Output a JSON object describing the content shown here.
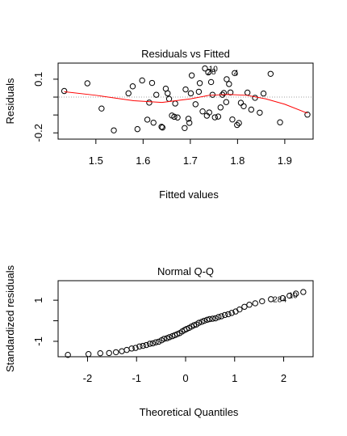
{
  "chart_data": [
    {
      "type": "scatter",
      "title": "Residuals vs Fitted",
      "xlabel": "Fitted values",
      "ylabel": "Residuals",
      "xlim": [
        1.42,
        1.96
      ],
      "ylim": [
        -0.235,
        0.19
      ],
      "xticks": [
        1.5,
        1.6,
        1.7,
        1.8,
        1.9
      ],
      "yticks": [
        -0.2,
        0.1
      ],
      "ytick_labels": [
        "-0.2",
        "0.1"
      ],
      "reference_line_y": 0,
      "smoother_color": "#ff0000",
      "reference_color": "#a0a0a0",
      "points": [
        [
          1.433,
          0.034
        ],
        [
          1.482,
          0.077
        ],
        [
          1.512,
          -0.064
        ],
        [
          1.538,
          -0.186
        ],
        [
          1.569,
          0.021
        ],
        [
          1.578,
          0.06
        ],
        [
          1.588,
          -0.179
        ],
        [
          1.598,
          0.093
        ],
        [
          1.609,
          -0.126
        ],
        [
          1.613,
          -0.031
        ],
        [
          1.619,
          0.079
        ],
        [
          1.622,
          -0.143
        ],
        [
          1.628,
          0.013
        ],
        [
          1.639,
          -0.166
        ],
        [
          1.641,
          -0.17
        ],
        [
          1.648,
          0.047
        ],
        [
          1.652,
          0.021
        ],
        [
          1.655,
          -0.01
        ],
        [
          1.661,
          -0.103
        ],
        [
          1.666,
          -0.11
        ],
        [
          1.668,
          -0.036
        ],
        [
          1.673,
          -0.114
        ],
        [
          1.688,
          -0.173
        ],
        [
          1.69,
          0.043
        ],
        [
          1.696,
          -0.121
        ],
        [
          1.698,
          -0.144
        ],
        [
          1.701,
          0.021
        ],
        [
          1.703,
          0.121
        ],
        [
          1.711,
          -0.04
        ],
        [
          1.718,
          0.03
        ],
        [
          1.72,
          0.078
        ],
        [
          1.726,
          -0.08
        ],
        [
          1.731,
          0.16
        ],
        [
          1.735,
          -0.104
        ],
        [
          1.738,
          0.138
        ],
        [
          1.74,
          -0.086
        ],
        [
          1.744,
          0.084
        ],
        [
          1.747,
          0.013
        ],
        [
          1.752,
          -0.113
        ],
        [
          1.759,
          -0.109
        ],
        [
          1.764,
          -0.058
        ],
        [
          1.768,
          0.013
        ],
        [
          1.771,
          0.023
        ],
        [
          1.776,
          -0.028
        ],
        [
          1.777,
          0.1
        ],
        [
          1.782,
          0.073
        ],
        [
          1.785,
          0.026
        ],
        [
          1.789,
          -0.125
        ],
        [
          1.794,
          0.134
        ],
        [
          1.799,
          -0.156
        ],
        [
          1.803,
          -0.145
        ],
        [
          1.807,
          -0.032
        ],
        [
          1.813,
          -0.051
        ],
        [
          1.821,
          0.025
        ],
        [
          1.829,
          -0.07
        ],
        [
          1.837,
          -0.004
        ],
        [
          1.847,
          -0.087
        ],
        [
          1.855,
          0.02
        ],
        [
          1.87,
          0.13
        ],
        [
          1.89,
          -0.141
        ],
        [
          1.948,
          -0.098
        ]
      ],
      "smoother": [
        [
          1.433,
          0.03
        ],
        [
          1.5,
          0.01
        ],
        [
          1.58,
          -0.02
        ],
        [
          1.64,
          -0.03
        ],
        [
          1.7,
          -0.01
        ],
        [
          1.74,
          0.01
        ],
        [
          1.78,
          0.015
        ],
        [
          1.82,
          0.01
        ],
        [
          1.86,
          -0.01
        ],
        [
          1.9,
          -0.04
        ],
        [
          1.948,
          -0.09
        ]
      ],
      "point_labels": [
        {
          "text": "10",
          "x": 1.739,
          "y": 0.155
        },
        {
          "text": "28",
          "x": 1.735,
          "y": 0.14
        },
        {
          "text": "4",
          "x": 1.792,
          "y": 0.133
        }
      ]
    },
    {
      "type": "scatter",
      "title": "Normal Q-Q",
      "xlabel": "Theoretical Quantiles",
      "ylabel": "Standardized residuals",
      "xlim": [
        -2.6,
        2.6
      ],
      "ylim": [
        -1.75,
        1.95
      ],
      "xticks": [
        -2,
        -1,
        0,
        1,
        2
      ],
      "yticks": [
        -1,
        1
      ],
      "ytick_labels": [
        "-1",
        "1"
      ],
      "points": [
        [
          -2.4,
          -1.66
        ],
        [
          -1.98,
          -1.62
        ],
        [
          -1.74,
          -1.58
        ],
        [
          -1.56,
          -1.57
        ],
        [
          -1.42,
          -1.53
        ],
        [
          -1.3,
          -1.48
        ],
        [
          -1.2,
          -1.42
        ],
        [
          -1.1,
          -1.35
        ],
        [
          -1.02,
          -1.32
        ],
        [
          -0.94,
          -1.25
        ],
        [
          -0.87,
          -1.22
        ],
        [
          -0.8,
          -1.18
        ],
        [
          -0.73,
          -1.12
        ],
        [
          -0.67,
          -1.1
        ],
        [
          -0.61,
          -1.05
        ],
        [
          -0.55,
          -1.02
        ],
        [
          -0.49,
          -0.95
        ],
        [
          -0.44,
          -0.88
        ],
        [
          -0.38,
          -0.85
        ],
        [
          -0.33,
          -0.8
        ],
        [
          -0.27,
          -0.75
        ],
        [
          -0.22,
          -0.7
        ],
        [
          -0.17,
          -0.65
        ],
        [
          -0.12,
          -0.6
        ],
        [
          -0.07,
          -0.52
        ],
        [
          -0.02,
          -0.45
        ],
        [
          0.02,
          -0.4
        ],
        [
          0.07,
          -0.35
        ],
        [
          0.12,
          -0.28
        ],
        [
          0.17,
          -0.22
        ],
        [
          0.22,
          -0.18
        ],
        [
          0.27,
          -0.1
        ],
        [
          0.33,
          -0.05
        ],
        [
          0.38,
          0.0
        ],
        [
          0.44,
          0.05
        ],
        [
          0.49,
          0.08
        ],
        [
          0.55,
          0.1
        ],
        [
          0.61,
          0.12
        ],
        [
          0.67,
          0.18
        ],
        [
          0.73,
          0.22
        ],
        [
          0.8,
          0.28
        ],
        [
          0.87,
          0.32
        ],
        [
          0.94,
          0.38
        ],
        [
          1.02,
          0.45
        ],
        [
          1.1,
          0.55
        ],
        [
          1.2,
          0.68
        ],
        [
          1.3,
          0.78
        ],
        [
          1.42,
          0.85
        ],
        [
          1.56,
          0.95
        ],
        [
          1.74,
          1.05
        ],
        [
          1.98,
          1.1
        ],
        [
          2.12,
          1.22
        ],
        [
          2.25,
          1.32
        ],
        [
          2.4,
          1.4
        ]
      ],
      "point_labels": [
        {
          "text": "28",
          "x": 1.78,
          "y": 1.02
        },
        {
          "text": "4",
          "x": 1.97,
          "y": 1.02
        },
        {
          "text": "10",
          "x": 2.1,
          "y": 1.22
        }
      ]
    }
  ]
}
